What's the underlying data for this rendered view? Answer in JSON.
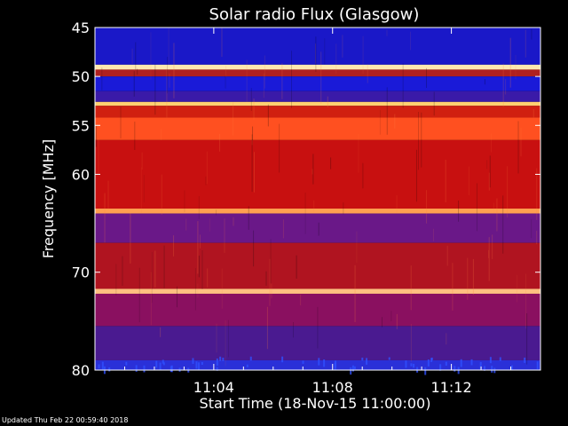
{
  "chart_data": {
    "type": "heatmap",
    "title": "Solar radio Flux (Glasgow)",
    "xlabel": "Start Time (18-Nov-15 11:00:00)",
    "ylabel": "Frequency [MHz]",
    "xlim_minutes": [
      0,
      15
    ],
    "ylim_mhz": [
      80,
      45
    ],
    "x_ticks": [
      {
        "value": 4,
        "label": "11:04"
      },
      {
        "value": 8,
        "label": "11:08"
      },
      {
        "value": 12,
        "label": "11:12"
      }
    ],
    "y_ticks": [
      {
        "value": 45,
        "label": "45"
      },
      {
        "value": 50,
        "label": "50"
      },
      {
        "value": 55,
        "label": "55"
      },
      {
        "value": 60,
        "label": "60"
      },
      {
        "value": 70,
        "label": "70"
      },
      {
        "value": 80,
        "label": "80"
      }
    ],
    "bands": [
      {
        "from": 45.0,
        "to": 48.8,
        "color": "#1a18c8"
      },
      {
        "from": 48.8,
        "to": 49.3,
        "color": "#ffe8b0"
      },
      {
        "from": 49.3,
        "to": 50.0,
        "color": "#b02020"
      },
      {
        "from": 50.0,
        "to": 51.5,
        "color": "#1a1ad8"
      },
      {
        "from": 51.5,
        "to": 52.6,
        "color": "#3a1aa8"
      },
      {
        "from": 52.6,
        "to": 53.0,
        "color": "#ffd070"
      },
      {
        "from": 53.0,
        "to": 54.2,
        "color": "#d02010"
      },
      {
        "from": 54.2,
        "to": 56.5,
        "color": "#ff5020"
      },
      {
        "from": 56.5,
        "to": 63.5,
        "color": "#c81010"
      },
      {
        "from": 63.5,
        "to": 64.0,
        "color": "#ffa050"
      },
      {
        "from": 64.0,
        "to": 67.0,
        "color": "#6a1888"
      },
      {
        "from": 67.0,
        "to": 71.7,
        "color": "#b01420"
      },
      {
        "from": 71.7,
        "to": 72.2,
        "color": "#ffc080"
      },
      {
        "from": 72.2,
        "to": 75.5,
        "color": "#8a1060"
      },
      {
        "from": 75.5,
        "to": 79.0,
        "color": "#4a1a90"
      },
      {
        "from": 79.0,
        "to": 80.0,
        "color": "#2a30d8"
      }
    ],
    "colorscale": [
      "#0000ff",
      "#800080",
      "#ff0000",
      "#ffff00",
      "#ffffff"
    ]
  },
  "footer": {
    "updated": "Updated Thu Feb 22 00:59:40 2018"
  }
}
